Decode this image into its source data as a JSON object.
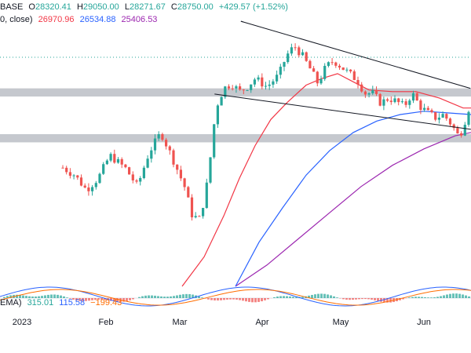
{
  "header": {
    "symbol_tail": "BASE",
    "open_label": "O",
    "open": "28320.41",
    "high_label": "H",
    "high": "29050.00",
    "low_label": "L",
    "low": "28271.67",
    "close_label": "C",
    "close": "28750.00",
    "change": "+429.57 (+1.52%)"
  },
  "ma_legend": {
    "label": "0, close)",
    "ma1": "26970.96",
    "ma2": "26534.88",
    "ma3": "25406.53"
  },
  "macd_legend": {
    "label": "EMA)",
    "histogram": "315.01",
    "macd": "115.58",
    "signal": "−199.43"
  },
  "time_axis": [
    "2023",
    "Feb",
    "Mar",
    "Apr",
    "May",
    "Jun"
  ],
  "colors": {
    "up": "#26a69a",
    "down": "#ef5350",
    "ma1": "#f23645",
    "ma2": "#2962ff",
    "ma3": "#9c27b0",
    "macd_line": "#2962ff",
    "signal_line": "#ff6d00",
    "trendline": "#131722",
    "zone": "#b2b5be",
    "dotted": "#26a69a"
  },
  "chart_data": {
    "type": "candlestick",
    "price_levels": {
      "dotted_line": 30000,
      "zones": [
        [
          27600,
          28100
        ],
        [
          24800,
          25300
        ]
      ]
    },
    "trendlines": [
      {
        "from": [
          "2023-03-25",
          32200
        ],
        "to": [
          "2023-06-20",
          28100
        ]
      },
      {
        "from": [
          "2023-03-15",
          27750
        ],
        "to": [
          "2023-06-20",
          25600
        ]
      }
    ]
  }
}
